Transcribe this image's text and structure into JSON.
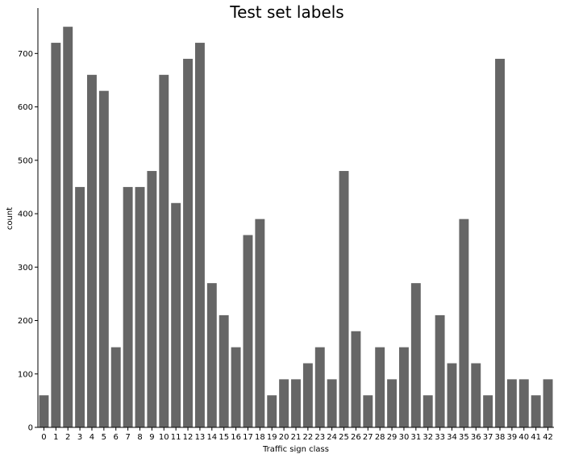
{
  "chart_data": {
    "type": "bar",
    "title": "Test set labels",
    "xlabel": "Traffic sign class",
    "ylabel": "count",
    "ylim": [
      0,
      785
    ],
    "yticks": [
      0,
      100,
      200,
      300,
      400,
      500,
      600,
      700
    ],
    "grid": false,
    "bar_color": "#666666",
    "categories": [
      "0",
      "1",
      "2",
      "3",
      "4",
      "5",
      "6",
      "7",
      "8",
      "9",
      "10",
      "11",
      "12",
      "13",
      "14",
      "15",
      "16",
      "17",
      "18",
      "19",
      "20",
      "21",
      "22",
      "23",
      "24",
      "25",
      "26",
      "27",
      "28",
      "29",
      "30",
      "31",
      "32",
      "33",
      "34",
      "35",
      "36",
      "37",
      "38",
      "39",
      "40",
      "41",
      "42"
    ],
    "values": [
      60,
      720,
      750,
      450,
      660,
      630,
      150,
      450,
      450,
      480,
      660,
      420,
      690,
      720,
      270,
      210,
      150,
      360,
      390,
      60,
      90,
      90,
      120,
      150,
      90,
      480,
      180,
      60,
      150,
      90,
      150,
      270,
      60,
      210,
      120,
      390,
      120,
      60,
      690,
      90,
      90,
      60,
      90
    ]
  }
}
